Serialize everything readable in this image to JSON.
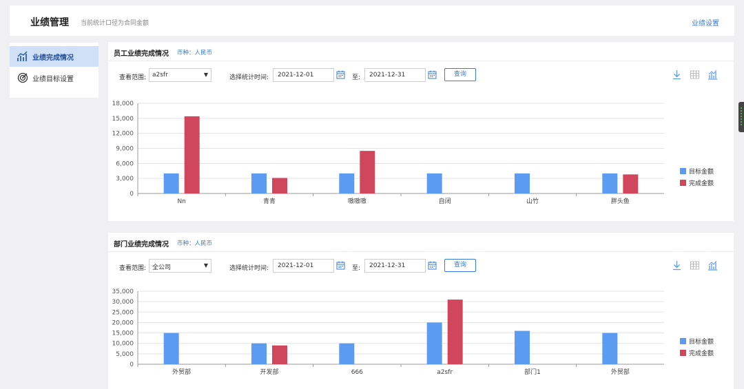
{
  "header": {
    "title": "业绩管理",
    "subtitle": "当前统计口径为合同金额",
    "settings_link": "业绩设置"
  },
  "sidebar": {
    "items": [
      {
        "label": "业绩完成情况",
        "icon": "performance-chart-icon",
        "active": true
      },
      {
        "label": "业绩目标设置",
        "icon": "target-icon",
        "active": false
      }
    ]
  },
  "colors": {
    "target": "#5b9bf2",
    "completed": "#d0475d",
    "accent": "#3a7bd5"
  },
  "panels": [
    {
      "title": "员工业绩完成情况",
      "currency": "币种：人民币",
      "filters": {
        "scope_label": "查看范围:",
        "scope_value": "a2sfr",
        "time_label": "选择统计时间:",
        "start_date": "2021-12-01",
        "to_label": "至:",
        "end_date": "2021-12-31",
        "query_button": "查询"
      },
      "toolbar": [
        "download-icon",
        "table-view-icon",
        "chart-view-icon"
      ]
    },
    {
      "title": "部门业绩完成情况",
      "currency": "币种：人民币",
      "filters": {
        "scope_label": "查看范围:",
        "scope_value": "全公司",
        "time_label": "选择统计时间:",
        "start_date": "2021-12-01",
        "to_label": "至:",
        "end_date": "2021-12-31",
        "query_button": "查询"
      },
      "toolbar": [
        "download-icon",
        "table-view-icon",
        "chart-view-icon"
      ]
    }
  ],
  "chart_data": [
    {
      "type": "bar",
      "categories": [
        "Nn",
        "青青",
        "嗷嗷嗷",
        "自闭",
        "山竹",
        "胖头鱼"
      ],
      "series": [
        {
          "name": "目标金额",
          "values": [
            4000,
            4000,
            4000,
            4000,
            4000,
            4000
          ]
        },
        {
          "name": "完成金额",
          "values": [
            15400,
            3100,
            8500,
            0,
            0,
            3800
          ]
        }
      ],
      "yticks": [
        "0",
        "3,000",
        "6,000",
        "9,000",
        "12,000",
        "15,000",
        "18,000"
      ],
      "ylim": [
        0,
        18000
      ],
      "grid": true,
      "legend": "right"
    },
    {
      "type": "bar",
      "categories": [
        "外贸部",
        "开发部",
        "666",
        "a2sfr",
        "部门1",
        "外贸部"
      ],
      "series": [
        {
          "name": "目标金额",
          "values": [
            15000,
            10000,
            10000,
            20000,
            16000,
            15000
          ]
        },
        {
          "name": "完成金额",
          "values": [
            0,
            9000,
            0,
            31000,
            0,
            0
          ]
        }
      ],
      "yticks": [
        "0",
        "5,000",
        "10,000",
        "15,000",
        "20,000",
        "25,000",
        "30,000",
        "35,000"
      ],
      "ylim": [
        0,
        35000
      ],
      "grid": true,
      "legend": "right"
    }
  ]
}
